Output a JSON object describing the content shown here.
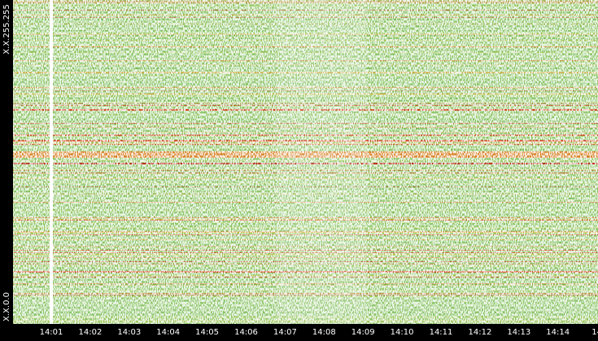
{
  "y_axis": {
    "top_label": "X.X.255.255",
    "bottom_label": "X.X.0.0"
  },
  "x_axis": {
    "ticks": [
      "14:01",
      "14:02",
      "14:03",
      "14:04",
      "14:05",
      "14:06",
      "14:07",
      "14:08",
      "14:09",
      "14:10",
      "14:11",
      "14:12",
      "14:13",
      "14:14",
      "14"
    ]
  }
}
